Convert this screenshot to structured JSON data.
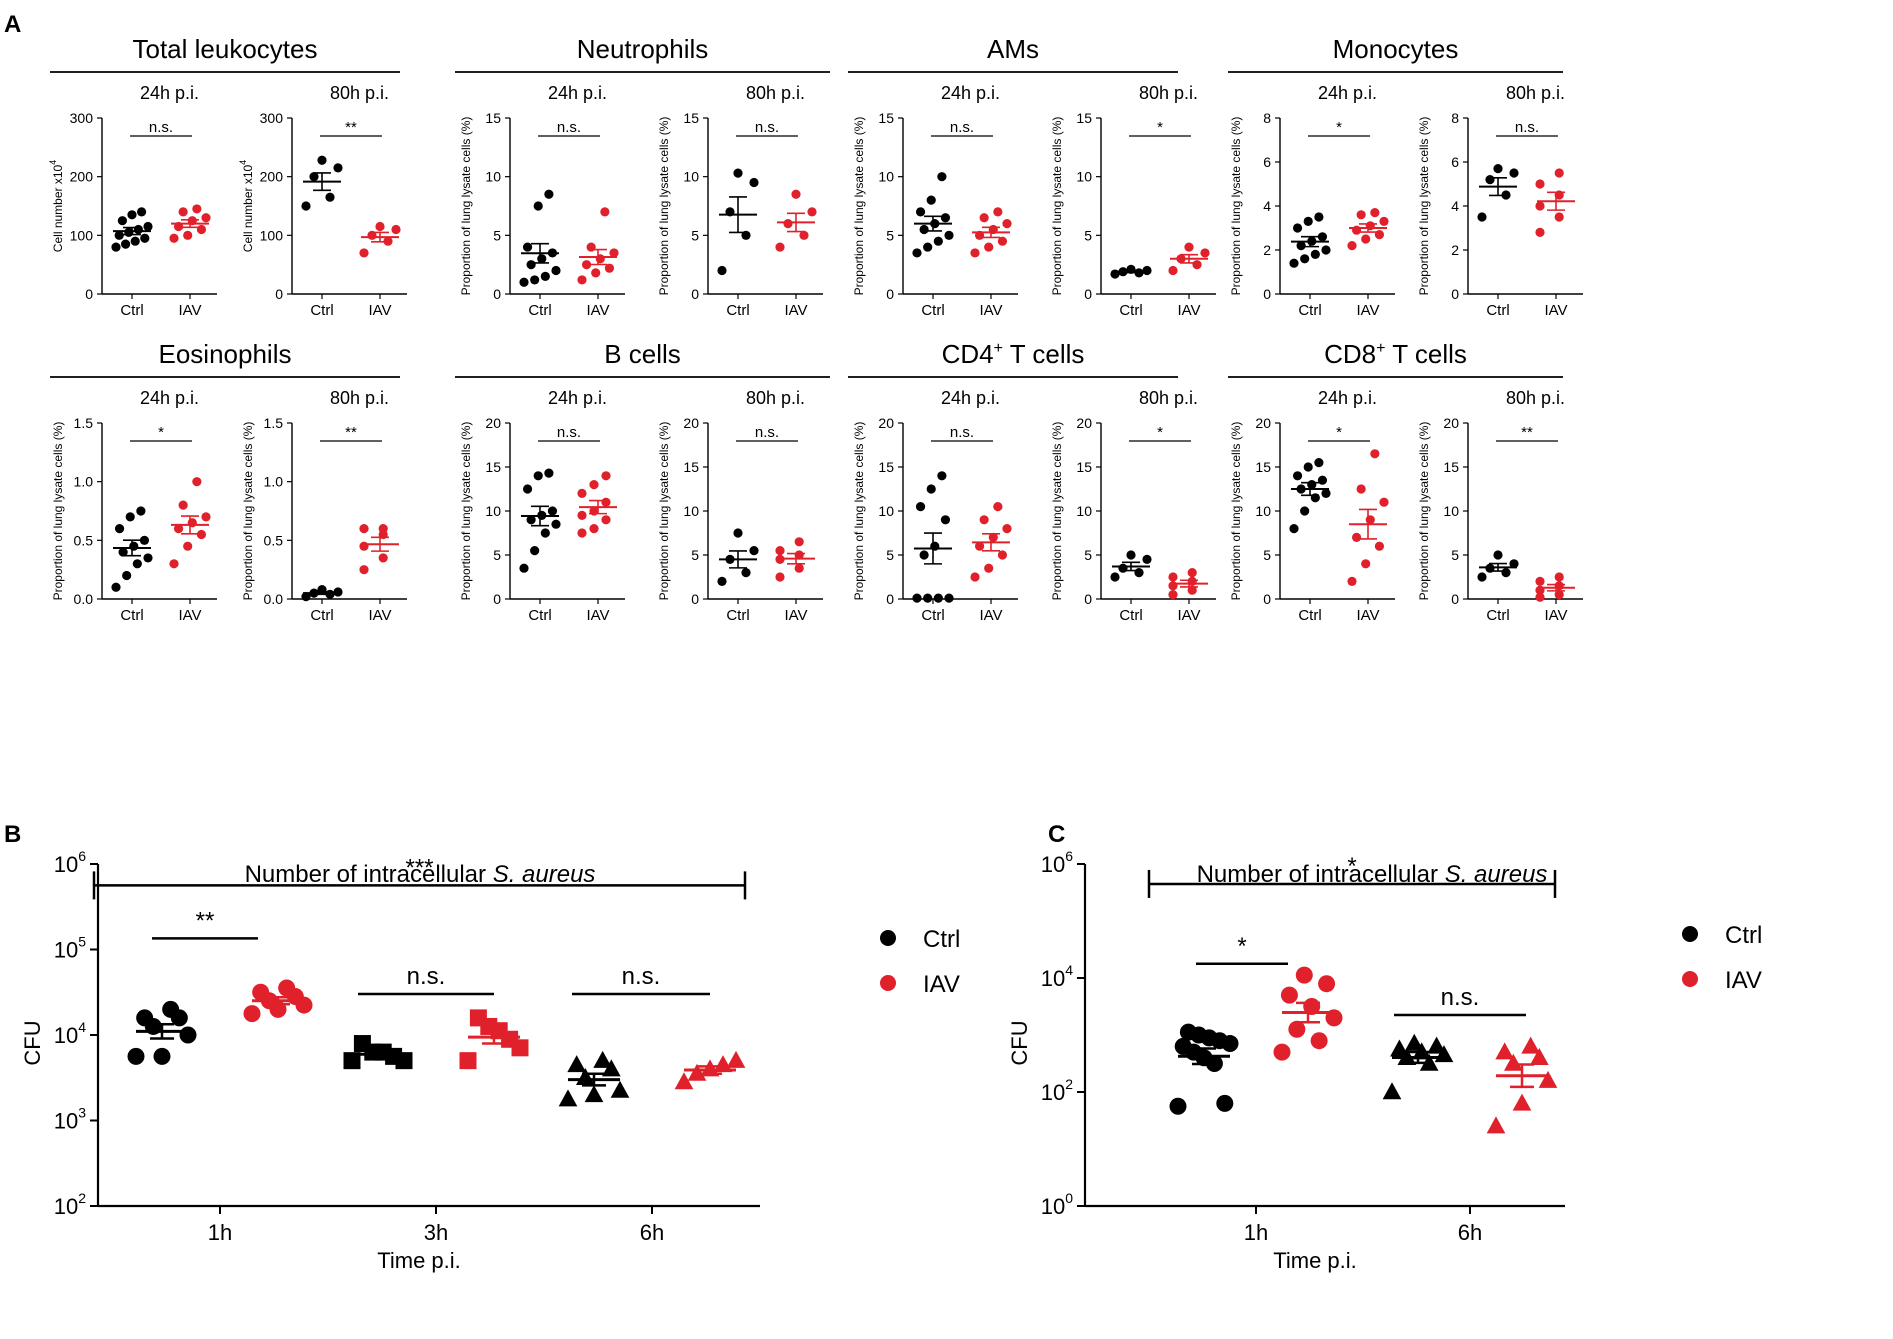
{
  "colors": {
    "ctrl": "#000000",
    "iav": "#e0202a",
    "axis": "#000000"
  },
  "panel_a": {
    "label": "A",
    "groups": [
      {
        "title": "Total leukocytes",
        "sup": "",
        "ylabel": "Cell number x10",
        "ylabel_sup": "4",
        "ylim": [
          0,
          300
        ],
        "ticks": [
          0,
          100,
          200,
          300
        ],
        "subs": [
          {
            "label": "24h p.i.",
            "sig": "n.s.",
            "ctrl": [
              80,
              85,
              90,
              95,
              100,
              105,
              110,
              115,
              125,
              135,
              140
            ],
            "iav": [
              95,
              100,
              110,
              115,
              125,
              130,
              140,
              145
            ]
          },
          {
            "label": "80h p.i.",
            "sig": "**",
            "ctrl": [
              150,
              165,
              200,
              215,
              228
            ],
            "iav": [
              70,
              90,
              100,
              110,
              115
            ]
          }
        ]
      },
      {
        "title": "Neutrophils",
        "sup": "",
        "ylabel": "Proportion of lung lysate cells (%)",
        "ylabel_sup": "",
        "ylim": [
          0,
          15
        ],
        "ticks": [
          0,
          5,
          10,
          15
        ],
        "subs": [
          {
            "label": "24h p.i.",
            "sig": "n.s.",
            "ctrl": [
              1,
              1.2,
              1.5,
              2,
              2.5,
              3,
              3.5,
              4,
              7.5,
              8.5
            ],
            "iav": [
              1.2,
              1.8,
              2.2,
              2.5,
              3,
              3.5,
              4,
              7
            ]
          },
          {
            "label": "80h p.i.",
            "sig": "n.s.",
            "ctrl": [
              2,
              5,
              7,
              9.5,
              10.3
            ],
            "iav": [
              4,
              5,
              6,
              7,
              8.5
            ]
          }
        ]
      },
      {
        "title": "AMs",
        "sup": "",
        "ylabel": "Proportion of lung lysate cells (%)",
        "ylabel_sup": "",
        "ylim": [
          0,
          15
        ],
        "ticks": [
          0,
          5,
          10,
          15
        ],
        "subs": [
          {
            "label": "24h p.i.",
            "sig": "n.s.",
            "ctrl": [
              3.5,
              4,
              4.5,
              5,
              5.5,
              6,
              6.5,
              7,
              8,
              10
            ],
            "iav": [
              3.5,
              4,
              4.5,
              5,
              5.5,
              6,
              6.5,
              7
            ]
          },
          {
            "label": "80h p.i.",
            "sig": "*",
            "ctrl": [
              1.7,
              1.8,
              1.9,
              2,
              2.1
            ],
            "iav": [
              2,
              2.5,
              3,
              3.5,
              4
            ]
          }
        ]
      },
      {
        "title": "Monocytes",
        "sup": "",
        "ylabel": "Proportion of lung lysate cells (%)",
        "ylabel_sup": "",
        "ylim": [
          0,
          8
        ],
        "ticks": [
          0,
          2,
          4,
          6,
          8
        ],
        "subs": [
          {
            "label": "24h p.i.",
            "sig": "*",
            "ctrl": [
              1.4,
              1.6,
              1.8,
              2,
              2.2,
              2.4,
              2.6,
              3,
              3.3,
              3.5
            ],
            "iav": [
              2.2,
              2.5,
              2.7,
              2.9,
              3.1,
              3.3,
              3.6,
              3.7
            ]
          },
          {
            "label": "80h p.i.",
            "sig": "n.s.",
            "ctrl": [
              3.5,
              4.5,
              5.2,
              5.5,
              5.7
            ],
            "iav": [
              2.8,
              3.5,
              4,
              4.5,
              5,
              5.5
            ]
          }
        ]
      },
      {
        "title": "Eosinophils",
        "sup": "",
        "ylabel": "Proportion of lung lysate cells (%)",
        "ylabel_sup": "",
        "ylim": [
          0,
          1.5
        ],
        "ticks": [
          0,
          0.5,
          1.0,
          1.5
        ],
        "tick_labels": [
          "0.0",
          "0.5",
          "1.0",
          "1.5"
        ],
        "subs": [
          {
            "label": "24h p.i.",
            "sig": "*",
            "ctrl": [
              0.1,
              0.2,
              0.3,
              0.35,
              0.4,
              0.45,
              0.5,
              0.6,
              0.7,
              0.75
            ],
            "iav": [
              0.3,
              0.45,
              0.55,
              0.6,
              0.65,
              0.7,
              0.8,
              1.0
            ]
          },
          {
            "label": "80h p.i.",
            "sig": "**",
            "ctrl": [
              0.02,
              0.04,
              0.05,
              0.06,
              0.08
            ],
            "iav": [
              0.25,
              0.35,
              0.45,
              0.55,
              0.6,
              0.6
            ]
          }
        ]
      },
      {
        "title": "B cells",
        "sup": "",
        "ylabel": "Proportion of lung lysate cells (%)",
        "ylabel_sup": "",
        "ylim": [
          0,
          20
        ],
        "ticks": [
          0,
          5,
          10,
          15,
          20
        ],
        "subs": [
          {
            "label": "24h p.i.",
            "sig": "n.s.",
            "ctrl": [
              3.5,
              5.5,
              7.5,
              8.5,
              9,
              9.5,
              10,
              12.5,
              14,
              14.3
            ],
            "iav": [
              7.5,
              8,
              9,
              9.5,
              10,
              11,
              12,
              13,
              14
            ]
          },
          {
            "label": "80h p.i.",
            "sig": "n.s.",
            "ctrl": [
              2,
              3,
              4.5,
              5.5,
              7.5
            ],
            "iav": [
              2.5,
              3.5,
              4.5,
              5,
              5.5,
              6.5
            ]
          }
        ]
      },
      {
        "title": "CD4",
        "sup": "+",
        "title_tail": " T cells",
        "ylabel": "Proportion of lung lysate cells (%)",
        "ylabel_sup": "",
        "ylim": [
          0,
          20
        ],
        "ticks": [
          0,
          5,
          10,
          15,
          20
        ],
        "subs": [
          {
            "label": "24h p.i.",
            "sig": "n.s.",
            "ctrl": [
              0.1,
              0.1,
              0.1,
              0.1,
              5,
              6,
              9,
              10.5,
              12.5,
              14
            ],
            "iav": [
              2.5,
              3.5,
              5,
              6,
              7,
              8,
              9,
              10.5
            ]
          },
          {
            "label": "80h p.i.",
            "sig": "*",
            "ctrl": [
              2.5,
              3,
              3.5,
              4.5,
              5
            ],
            "iav": [
              0.5,
              1,
              1.5,
              2,
              2.5,
              3
            ]
          }
        ]
      },
      {
        "title": "CD8",
        "sup": "+",
        "title_tail": " T cells",
        "ylabel": "Proportion of lung lysate cells (%)",
        "ylabel_sup": "",
        "ylim": [
          0,
          20
        ],
        "ticks": [
          0,
          5,
          10,
          15,
          20
        ],
        "subs": [
          {
            "label": "24h p.i.",
            "sig": "*",
            "ctrl": [
              8,
              10,
              11.5,
              12,
              12.5,
              13,
              13.5,
              14,
              15,
              15.5
            ],
            "iav": [
              2,
              4,
              6,
              7,
              9,
              11,
              12.5,
              16.5
            ]
          },
          {
            "label": "80h p.i.",
            "sig": "**",
            "ctrl": [
              2.5,
              3,
              3.5,
              4,
              5
            ],
            "iav": [
              0.2,
              0.5,
              1,
              1.5,
              2,
              2.5
            ]
          }
        ]
      }
    ],
    "x_categories": [
      "Ctrl",
      "IAV"
    ]
  },
  "panel_b": {
    "label": "B",
    "title": "Number of intracellular ",
    "title_italic": "S. aureus",
    "ylabel": "CFU",
    "xlabel": "Time p.i.",
    "categories": [
      "1h",
      "3h",
      "6h"
    ],
    "ytick_exps": [
      "2",
      "3",
      "4",
      "5",
      "6"
    ],
    "ylim_log10": [
      2,
      6
    ],
    "markers": [
      "circle",
      "square",
      "triangle"
    ],
    "series": [
      {
        "name": "Ctrl",
        "log_values": [
          [
            3.75,
            3.75,
            4.0,
            4.1,
            4.2,
            4.2,
            4.3
          ],
          [
            3.7,
            3.7,
            3.75,
            3.8,
            3.8,
            3.9
          ],
          [
            3.25,
            3.3,
            3.35,
            3.5,
            3.6,
            3.65,
            3.7
          ]
        ]
      },
      {
        "name": "IAV",
        "log_values": [
          [
            4.25,
            4.3,
            4.35,
            4.4,
            4.45,
            4.5,
            4.55
          ],
          [
            3.7,
            3.85,
            3.95,
            4.05,
            4.1,
            4.2
          ],
          [
            3.45,
            3.55,
            3.6,
            3.65,
            3.7
          ]
        ]
      }
    ],
    "comparisons": [
      {
        "label": "**",
        "level": 5.13
      },
      {
        "label": "n.s.",
        "level": 4.48
      },
      {
        "label": "n.s.",
        "level": 4.48
      },
      {
        "label": "***",
        "level": 5.75
      }
    ],
    "legend": [
      "Ctrl",
      "IAV"
    ]
  },
  "panel_c": {
    "label": "C",
    "title": "Number of intracellular ",
    "title_italic": "S. aureus",
    "ylabel": "CFU",
    "xlabel": "Time p.i.",
    "categories": [
      "1h",
      "6h"
    ],
    "ytick_exps": [
      "0",
      "2",
      "4",
      "6"
    ],
    "ylim_log10": [
      0,
      6
    ],
    "markers": [
      "circle",
      "triangle"
    ],
    "series": [
      {
        "name": "Ctrl",
        "log_values": [
          [
            1.75,
            1.8,
            2.5,
            2.6,
            2.7,
            2.8,
            2.85,
            2.9,
            2.95,
            3.0,
            3.05
          ],
          [
            2.0,
            2.5,
            2.6,
            2.65,
            2.7,
            2.75,
            2.8,
            2.85
          ]
        ]
      },
      {
        "name": "IAV",
        "log_values": [
          [
            2.7,
            2.9,
            3.1,
            3.3,
            3.5,
            3.7,
            3.9,
            4.05
          ],
          [
            1.4,
            1.8,
            2.2,
            2.5,
            2.6,
            2.7,
            2.8
          ]
        ]
      }
    ],
    "comparisons": [
      {
        "label": "*",
        "level": 4.25
      },
      {
        "label": "n.s.",
        "level": 3.35
      },
      {
        "label": "*",
        "level": 5.65
      }
    ],
    "legend": [
      "Ctrl",
      "IAV"
    ]
  }
}
